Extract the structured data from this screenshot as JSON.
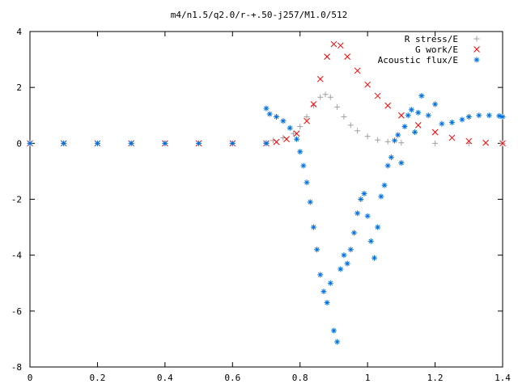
{
  "chart_data": {
    "type": "scatter",
    "title": "m4/n1.5/q2.0/r-+.50-j257/M1.0/512",
    "xlabel": "",
    "ylabel": "",
    "xlim": [
      0,
      1.4
    ],
    "ylim": [
      -8,
      4
    ],
    "xticks": [
      "0",
      "0.2",
      "0.4",
      "0.6",
      "0.8",
      "1",
      "1.2",
      "1.4"
    ],
    "yticks": [
      "4",
      "2",
      "0",
      "-2",
      "-4",
      "-6",
      "-8"
    ],
    "legend_position": "top-right",
    "grid": false,
    "series": [
      {
        "name": "R stress/E",
        "marker": "+",
        "color": "#a0a0a0",
        "points": [
          [
            0.0,
            0.0
          ],
          [
            0.1,
            0.0
          ],
          [
            0.2,
            0.0
          ],
          [
            0.3,
            0.0
          ],
          [
            0.4,
            0.0
          ],
          [
            0.5,
            0.0
          ],
          [
            0.6,
            0.0
          ],
          [
            0.7,
            0.02
          ],
          [
            0.72,
            0.1
          ],
          [
            0.75,
            0.2
          ],
          [
            0.78,
            0.35
          ],
          [
            0.8,
            0.6
          ],
          [
            0.82,
            0.95
          ],
          [
            0.84,
            1.35
          ],
          [
            0.86,
            1.65
          ],
          [
            0.875,
            1.75
          ],
          [
            0.89,
            1.65
          ],
          [
            0.91,
            1.3
          ],
          [
            0.93,
            0.95
          ],
          [
            0.95,
            0.65
          ],
          [
            0.97,
            0.45
          ],
          [
            1.0,
            0.25
          ],
          [
            1.03,
            0.12
          ],
          [
            1.06,
            0.06
          ],
          [
            1.1,
            0.02
          ],
          [
            1.2,
            0.0
          ],
          [
            1.3,
            0.0
          ],
          [
            1.4,
            0.0
          ]
        ]
      },
      {
        "name": "G work/E",
        "marker": "x",
        "color": "#ff0000",
        "points": [
          [
            0.0,
            0.0
          ],
          [
            0.1,
            0.0
          ],
          [
            0.2,
            0.0
          ],
          [
            0.3,
            0.0
          ],
          [
            0.4,
            0.0
          ],
          [
            0.5,
            0.0
          ],
          [
            0.6,
            0.0
          ],
          [
            0.7,
            0.0
          ],
          [
            0.73,
            0.05
          ],
          [
            0.76,
            0.15
          ],
          [
            0.79,
            0.35
          ],
          [
            0.82,
            0.8
          ],
          [
            0.84,
            1.4
          ],
          [
            0.86,
            2.3
          ],
          [
            0.88,
            3.1
          ],
          [
            0.9,
            3.55
          ],
          [
            0.92,
            3.5
          ],
          [
            0.94,
            3.1
          ],
          [
            0.97,
            2.6
          ],
          [
            1.0,
            2.1
          ],
          [
            1.03,
            1.7
          ],
          [
            1.06,
            1.35
          ],
          [
            1.1,
            1.0
          ],
          [
            1.15,
            0.65
          ],
          [
            1.2,
            0.4
          ],
          [
            1.25,
            0.2
          ],
          [
            1.3,
            0.08
          ],
          [
            1.35,
            0.02
          ],
          [
            1.4,
            0.0
          ]
        ]
      },
      {
        "name": "Acoustic flux/E",
        "marker": "*",
        "color": "#0070e0",
        "points": [
          [
            0.0,
            0.0
          ],
          [
            0.1,
            0.0
          ],
          [
            0.2,
            0.0
          ],
          [
            0.3,
            0.0
          ],
          [
            0.4,
            0.0
          ],
          [
            0.5,
            0.0
          ],
          [
            0.6,
            0.0
          ],
          [
            0.7,
            0.0
          ],
          [
            0.7,
            1.25
          ],
          [
            0.71,
            1.05
          ],
          [
            0.73,
            0.95
          ],
          [
            0.75,
            0.8
          ],
          [
            0.77,
            0.55
          ],
          [
            0.79,
            0.15
          ],
          [
            0.8,
            -0.3
          ],
          [
            0.81,
            -0.8
          ],
          [
            0.82,
            -1.4
          ],
          [
            0.83,
            -2.1
          ],
          [
            0.84,
            -3.0
          ],
          [
            0.85,
            -3.8
          ],
          [
            0.86,
            -4.7
          ],
          [
            0.87,
            -5.3
          ],
          [
            0.88,
            -5.7
          ],
          [
            0.89,
            -5.0
          ],
          [
            0.9,
            -6.7
          ],
          [
            0.91,
            -7.1
          ],
          [
            0.92,
            -4.5
          ],
          [
            0.93,
            -4.0
          ],
          [
            0.94,
            -4.3
          ],
          [
            0.95,
            -3.8
          ],
          [
            0.96,
            -3.2
          ],
          [
            0.97,
            -2.5
          ],
          [
            0.98,
            -2.0
          ],
          [
            0.99,
            -1.8
          ],
          [
            1.0,
            -2.6
          ],
          [
            1.01,
            -3.5
          ],
          [
            1.02,
            -4.1
          ],
          [
            1.03,
            -3.0
          ],
          [
            1.04,
            -1.9
          ],
          [
            1.05,
            -1.5
          ],
          [
            1.06,
            -0.8
          ],
          [
            1.07,
            -0.5
          ],
          [
            1.08,
            0.1
          ],
          [
            1.09,
            0.3
          ],
          [
            1.1,
            -0.7
          ],
          [
            1.11,
            0.6
          ],
          [
            1.12,
            1.0
          ],
          [
            1.13,
            1.2
          ],
          [
            1.14,
            0.4
          ],
          [
            1.15,
            1.1
          ],
          [
            1.16,
            1.7
          ],
          [
            1.18,
            1.0
          ],
          [
            1.2,
            1.4
          ],
          [
            1.22,
            0.7
          ],
          [
            1.25,
            0.75
          ],
          [
            1.28,
            0.85
          ],
          [
            1.3,
            0.95
          ],
          [
            1.33,
            1.0
          ],
          [
            1.36,
            1.0
          ],
          [
            1.39,
            0.98
          ],
          [
            1.4,
            0.95
          ]
        ]
      }
    ]
  }
}
